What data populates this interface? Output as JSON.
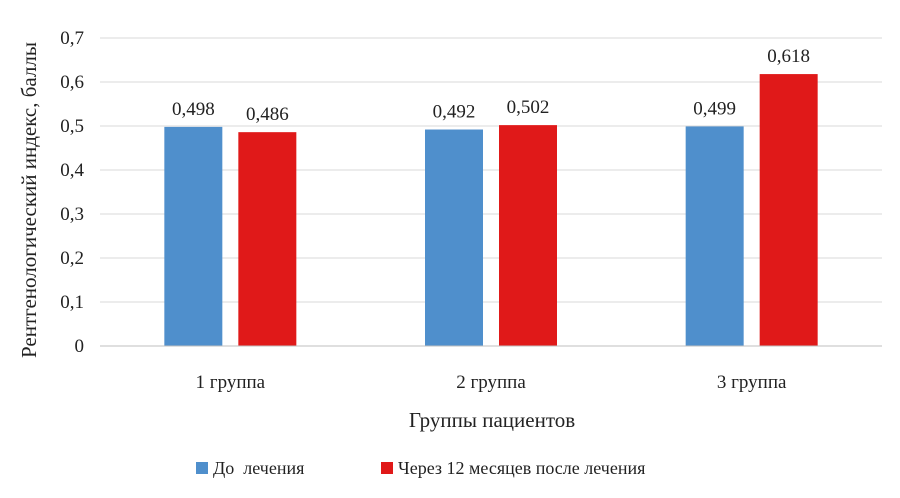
{
  "chart_data": {
    "type": "bar",
    "title": "",
    "xlabel": "Группы пациентов",
    "ylabel": "Рентгенологический индекс, баллы",
    "categories": [
      "1 группа",
      "2 группа",
      "3 группа"
    ],
    "series": [
      {
        "name": "До  лечения",
        "color": "#4f8fcc",
        "values": [
          0.498,
          0.492,
          0.499
        ],
        "labels": [
          "0,498",
          "0,492",
          "0,499"
        ]
      },
      {
        "name": "Через 12 месяцев после лечения",
        "color": "#e01919",
        "values": [
          0.486,
          0.502,
          0.618
        ],
        "labels": [
          "0,486",
          "0,502",
          "0,618"
        ]
      }
    ],
    "ylim": [
      0,
      0.7
    ],
    "yticks": [
      0,
      0.1,
      0.2,
      0.3,
      0.4,
      0.5,
      0.6,
      0.7
    ],
    "ytick_labels": [
      "0",
      "0,1",
      "0,2",
      "0,3",
      "0,4",
      "0,5",
      "0,6",
      "0,7"
    ],
    "grid": true,
    "legend_position": "bottom"
  }
}
